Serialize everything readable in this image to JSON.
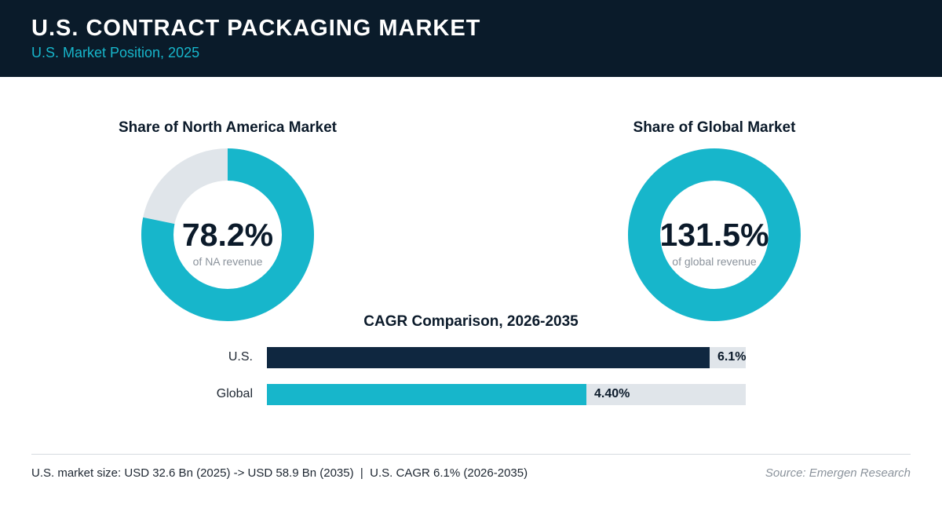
{
  "header": {
    "title": "U.S. CONTRACT PACKAGING MARKET",
    "subtitle": "U.S. Market Position, 2025"
  },
  "colors": {
    "header_bg": "#0a1b2a",
    "accent": "#17b6cb",
    "dark_bar": "#0f2740",
    "track": "#e0e5ea"
  },
  "chart_data": [
    {
      "type": "pie",
      "variant": "donut",
      "title": "Share of North America Market",
      "value": 78.2,
      "value_label": "78.2%",
      "caption": "of NA revenue",
      "max": 100
    },
    {
      "type": "pie",
      "variant": "donut",
      "title": "Share of Global Market",
      "value": 131.5,
      "value_label": "131.5%",
      "caption": "of global revenue",
      "max": 100
    },
    {
      "type": "bar",
      "orientation": "horizontal",
      "title": "CAGR Comparison, 2026-2035",
      "categories": [
        "U.S.",
        "Global"
      ],
      "values": [
        6.1,
        4.4
      ],
      "value_labels": [
        "6.1%",
        "4.40%"
      ],
      "xlim": [
        0,
        6.6
      ]
    }
  ],
  "footer": {
    "note": "U.S. market size: USD 32.6 Bn (2025) -> USD 58.9 Bn (2035)  |  U.S. CAGR 6.1% (2026-2035)",
    "source": "Source: Emergen Research"
  }
}
